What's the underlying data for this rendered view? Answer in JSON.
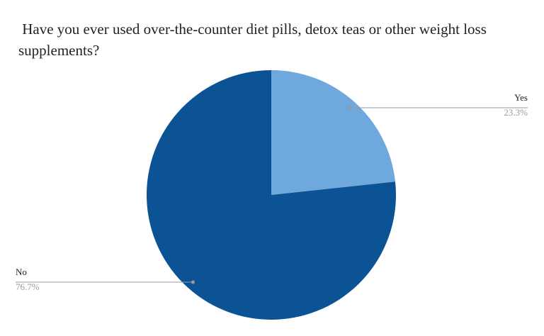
{
  "chart_data": {
    "type": "pie",
    "title": " Have you ever used over-the-counter diet pills, detox teas or other weight loss supplements?",
    "categories": [
      "Yes",
      "No"
    ],
    "values": [
      23.3,
      76.7
    ],
    "value_labels": [
      "23.3%",
      "76.7%"
    ],
    "colors": [
      "#6fa8dc",
      "#0b5394"
    ]
  }
}
